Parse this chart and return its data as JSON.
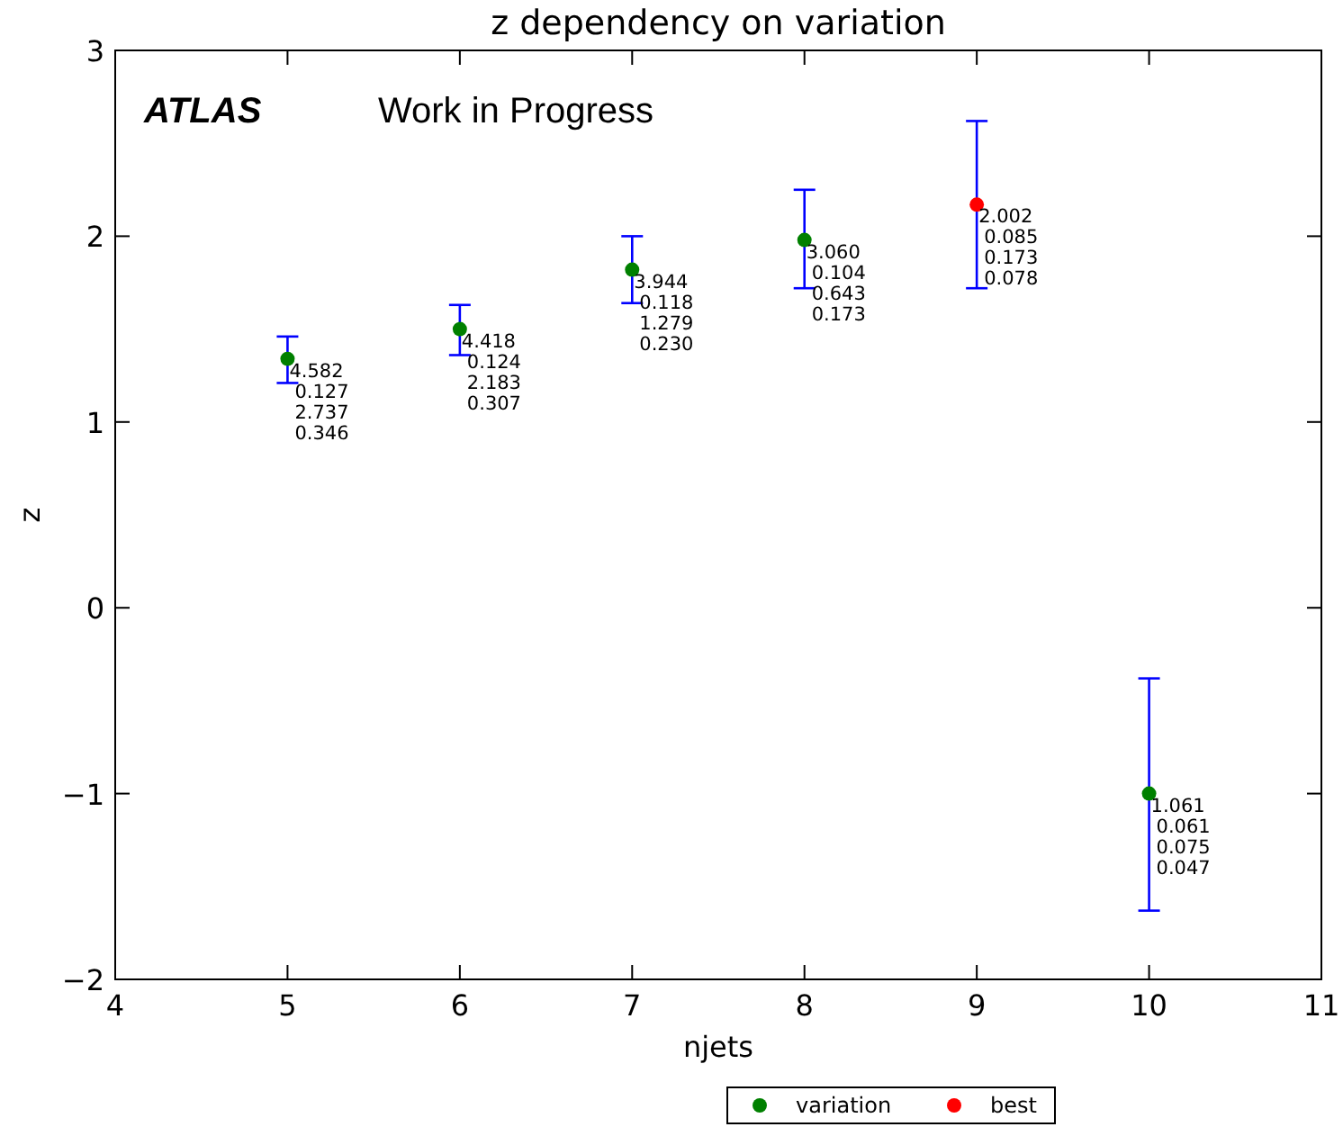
{
  "chart_data": {
    "type": "scatter",
    "title": "z dependency on variation",
    "xlabel": "njets",
    "ylabel": "z",
    "xlim": [
      4,
      11
    ],
    "xticks": [
      4,
      5,
      6,
      7,
      8,
      9,
      10,
      11
    ],
    "ylim": [
      -2,
      3
    ],
    "yticks": [
      -2,
      -1,
      0,
      1,
      2,
      3
    ],
    "marker": "circle",
    "legend": "bottom",
    "grid": false,
    "series": [
      {
        "name": "variation",
        "color": "#008000",
        "x": [
          5,
          6,
          7,
          8,
          10
        ],
        "values": [
          1.34,
          1.5,
          1.82,
          1.98,
          -1.0
        ],
        "errors": [
          [
            1.21,
            1.46
          ],
          [
            1.36,
            1.63
          ],
          [
            1.64,
            2.0
          ],
          [
            1.72,
            2.25
          ],
          [
            -1.63,
            -0.38
          ]
        ]
      },
      {
        "name": "best",
        "color": "#ff0000",
        "x": [
          9
        ],
        "values": [
          2.17
        ],
        "errors": [
          [
            1.72,
            2.62
          ]
        ]
      }
    ],
    "annotations": [
      "ATLAS",
      "Work in Progress",
      {
        "text": "4.582\n0.127\n2.737\n0.346",
        "x": 5,
        "y": 1.34
      },
      {
        "text": "4.418\n0.124\n2.183\n0.307",
        "x": 6,
        "y": 1.5
      },
      {
        "text": "3.944\n0.118\n1.279\n0.230",
        "x": 7,
        "y": 1.82
      },
      {
        "text": "3.060\n0.104\n0.643\n0.173",
        "x": 8,
        "y": 1.98
      },
      {
        "text": "2.002\n0.085\n0.173\n0.078",
        "x": 9,
        "y": 2.17
      },
      {
        "text": "1.061\n0.061\n0.075\n0.047",
        "x": 10,
        "y": -1.0
      }
    ]
  }
}
